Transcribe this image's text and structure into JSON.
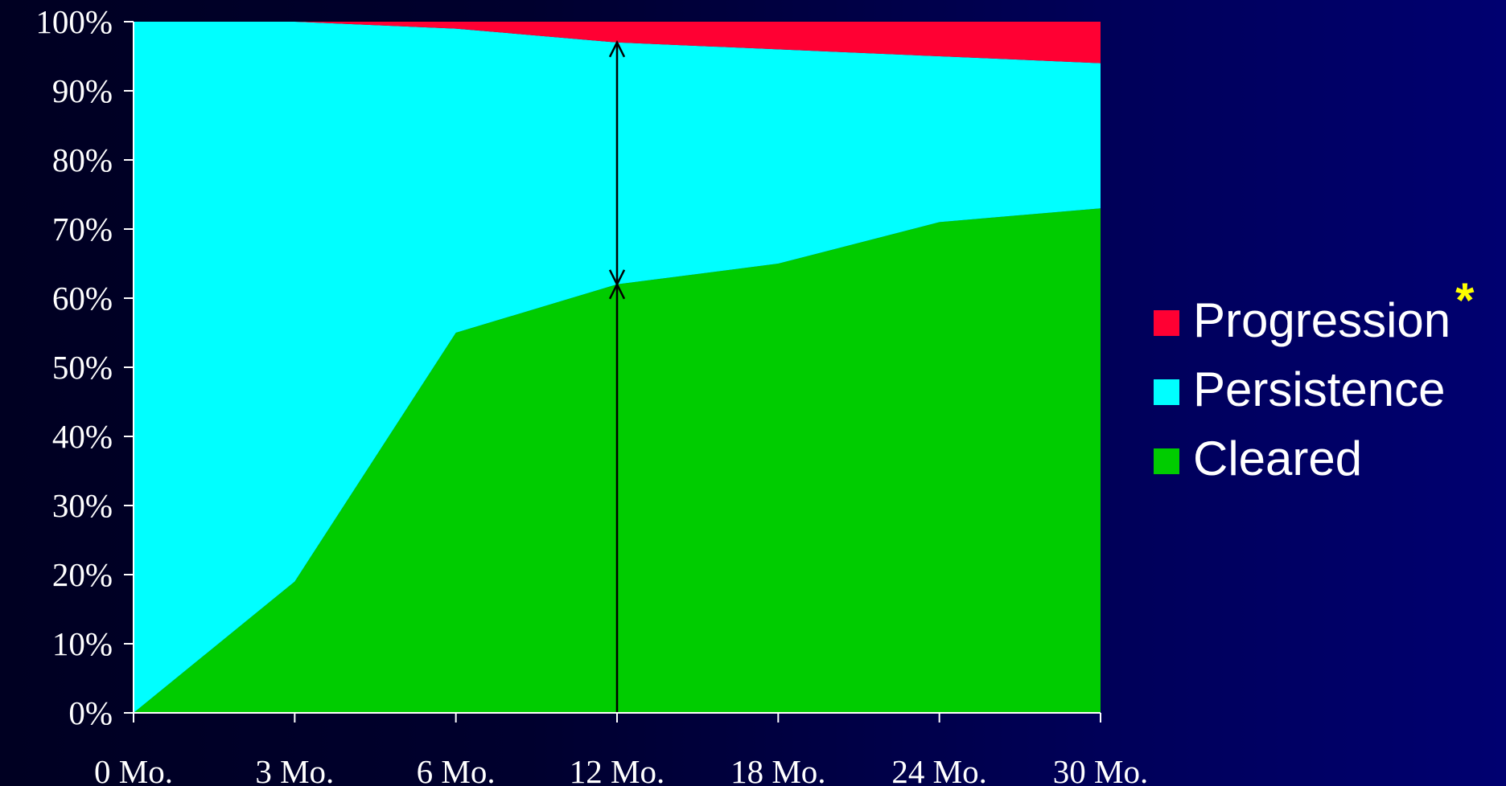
{
  "chart_data": {
    "type": "area",
    "stacked": true,
    "categories": [
      "0 Mo.",
      "3 Mo.",
      "6 Mo.",
      "12 Mo.",
      "18 Mo.",
      "24 Mo.",
      "30 Mo."
    ],
    "series": [
      {
        "name": "Cleared",
        "values": [
          0,
          19,
          55,
          62,
          65,
          71,
          73
        ],
        "color": "#00cc00"
      },
      {
        "name": "Persistence",
        "values": [
          100,
          81,
          44,
          35,
          31,
          24,
          21
        ],
        "color": "#00ffff"
      },
      {
        "name": "Progression",
        "values": [
          0,
          0,
          1,
          3,
          4,
          5,
          6
        ],
        "color": "#ff0033"
      }
    ],
    "ylim": [
      0,
      100
    ],
    "yticks": [
      "0%",
      "10%",
      "20%",
      "30%",
      "40%",
      "50%",
      "60%",
      "70%",
      "80%",
      "90%",
      "100%"
    ],
    "annotations": [
      {
        "type": "double-arrow",
        "category": "12 Mo.",
        "from": 62,
        "to": 97
      },
      {
        "type": "arrow",
        "category": "12 Mo.",
        "from": 0,
        "to": 62
      }
    ],
    "legend": {
      "placement": "right",
      "order": [
        "Progression",
        "Persistence",
        "Cleared"
      ],
      "marker_after_first": "*"
    },
    "marker_color": "#ffff00",
    "grid": false
  }
}
